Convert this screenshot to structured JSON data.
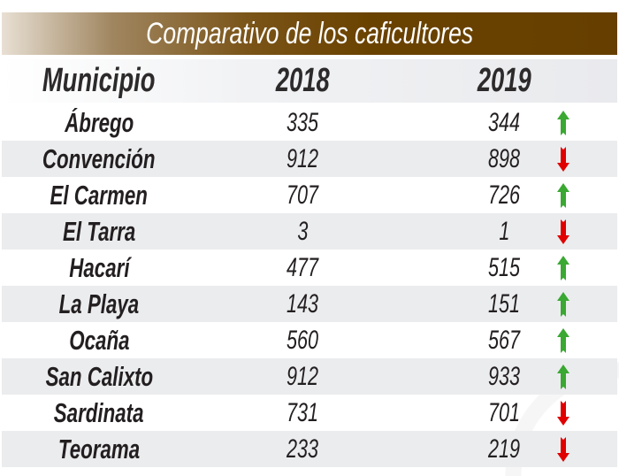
{
  "title": "Comparativo de los caficultores",
  "headers": [
    "Municipio",
    "2018",
    "2019"
  ],
  "colors": {
    "up": "#3aa832",
    "down": "#e00000",
    "title_bg": "#663f00"
  },
  "rows": [
    {
      "municipio": "Ábrego",
      "y2018": "335",
      "y2019": "344",
      "trend": "up"
    },
    {
      "municipio": "Convención",
      "y2018": "912",
      "y2019": "898",
      "trend": "down"
    },
    {
      "municipio": "El Carmen",
      "y2018": "707",
      "y2019": "726",
      "trend": "up"
    },
    {
      "municipio": "El Tarra",
      "y2018": "3",
      "y2019": "1",
      "trend": "down"
    },
    {
      "municipio": "Hacarí",
      "y2018": "477",
      "y2019": "515",
      "trend": "up"
    },
    {
      "municipio": "La Playa",
      "y2018": "143",
      "y2019": "151",
      "trend": "up"
    },
    {
      "municipio": "Ocaña",
      "y2018": "560",
      "y2019": "567",
      "trend": "up"
    },
    {
      "municipio": "San Calixto",
      "y2018": "912",
      "y2019": "933",
      "trend": "up"
    },
    {
      "municipio": "Sardinata",
      "y2018": "731",
      "y2019": "701",
      "trend": "down"
    },
    {
      "municipio": "Teorama",
      "y2018": "233",
      "y2019": "219",
      "trend": "down"
    }
  ],
  "chart_data": {
    "type": "table",
    "title": "Comparativo de los caficultores",
    "columns": [
      "Municipio",
      "2018",
      "2019"
    ],
    "categories": [
      "Ábrego",
      "Convención",
      "El Carmen",
      "El Tarra",
      "Hacarí",
      "La Playa",
      "Ocaña",
      "San Calixto",
      "Sardinata",
      "Teorama"
    ],
    "series": [
      {
        "name": "2018",
        "values": [
          335,
          912,
          707,
          3,
          477,
          143,
          560,
          912,
          731,
          233
        ]
      },
      {
        "name": "2019",
        "values": [
          344,
          898,
          726,
          1,
          515,
          151,
          567,
          933,
          701,
          219
        ]
      }
    ]
  }
}
